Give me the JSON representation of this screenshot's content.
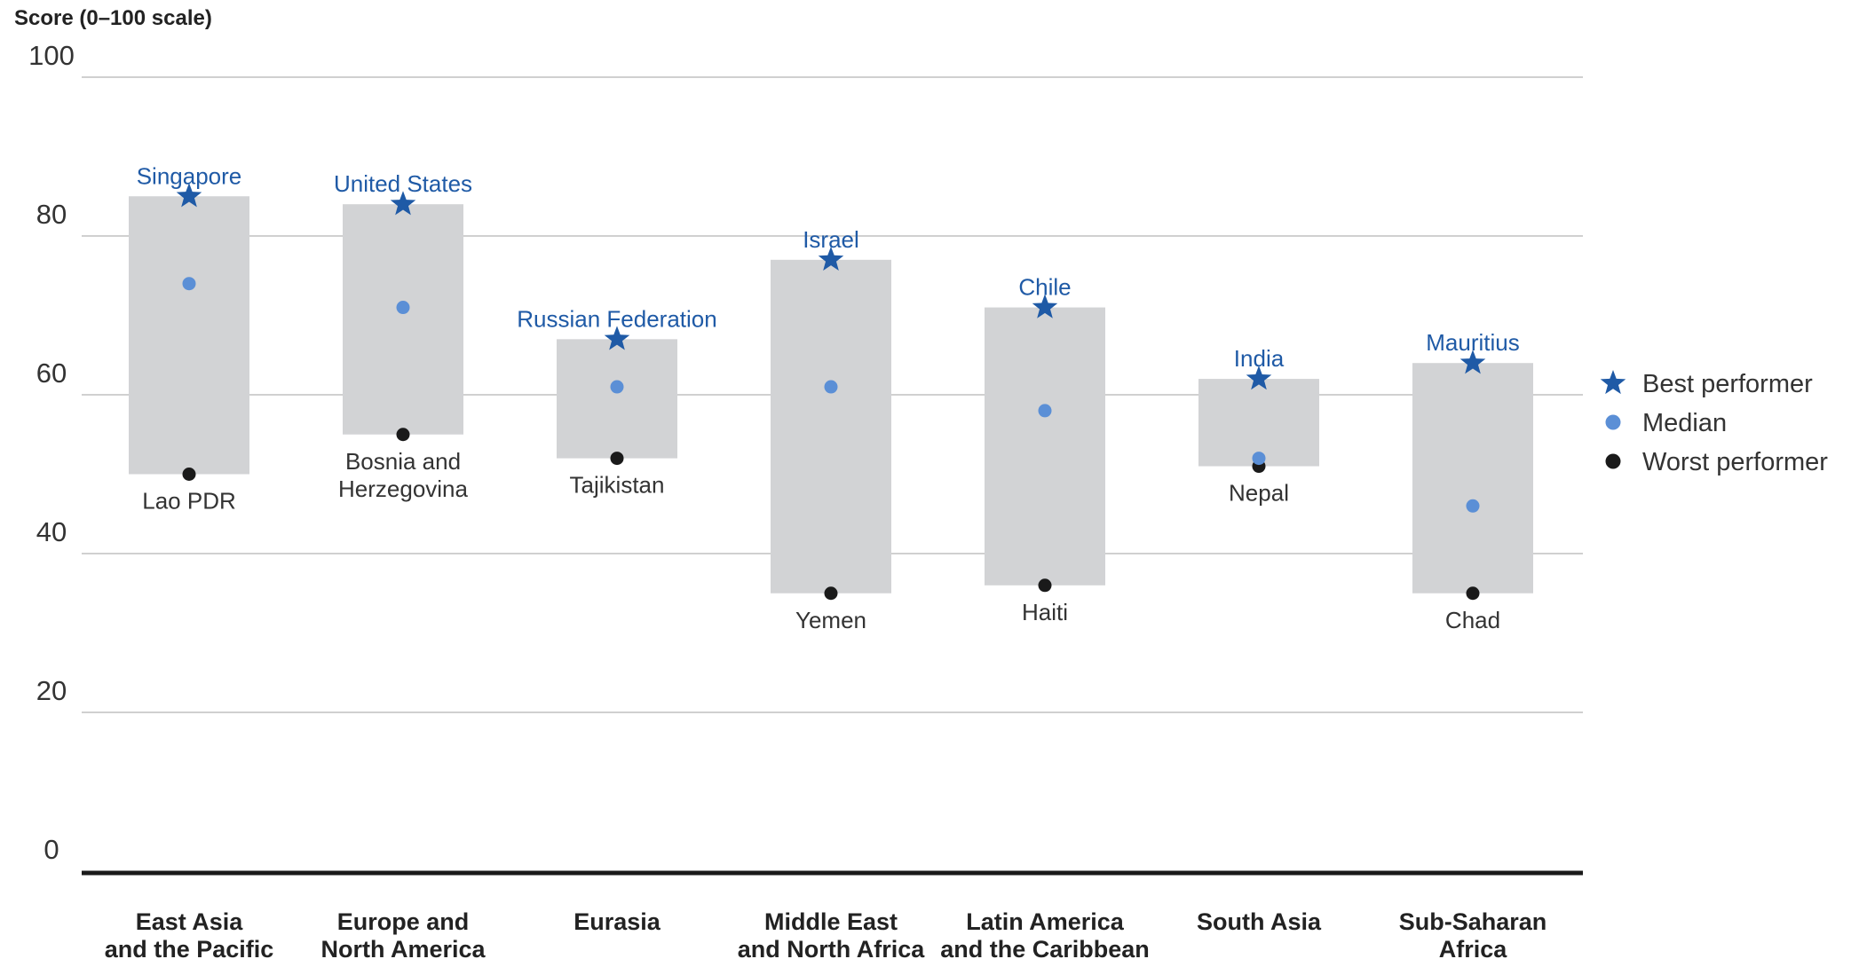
{
  "chart_data": {
    "type": "range",
    "ylabel": "Score (0–100 scale)",
    "ylim": [
      0,
      100
    ],
    "y_ticks": [
      0,
      20,
      40,
      60,
      80,
      100
    ],
    "grid": true,
    "legend_position": "right",
    "colors": {
      "range_bar": "#d2d3d5",
      "best": "#1f5aa6",
      "median": "#5b8fd6",
      "worst": "#1a1a1a",
      "grid": "#d0d0d0",
      "axis": "#1a1a1a"
    },
    "legend": [
      {
        "name": "Best performer",
        "marker": "star-icon"
      },
      {
        "name": "Median",
        "marker": "circle-icon"
      },
      {
        "name": "Worst performer",
        "marker": "circle-icon"
      }
    ],
    "categories": [
      [
        "East Asia",
        "and the Pacific"
      ],
      [
        "Europe and",
        "North America"
      ],
      [
        "Eurasia"
      ],
      [
        "Middle East",
        "and North Africa"
      ],
      [
        "Latin America",
        "and the Caribbean"
      ],
      [
        "South Asia"
      ],
      [
        "Sub-Saharan",
        "Africa"
      ]
    ],
    "series": [
      {
        "name": "Best performer",
        "values": [
          85,
          84,
          67,
          77,
          71,
          62,
          64
        ],
        "labels": [
          [
            "Singapore"
          ],
          [
            "United States"
          ],
          [
            "Russian Federation"
          ],
          [
            "Israel"
          ],
          [
            "Chile"
          ],
          [
            "India"
          ],
          [
            "Mauritius"
          ]
        ]
      },
      {
        "name": "Median",
        "values": [
          74,
          71,
          61,
          61,
          58,
          52,
          46
        ]
      },
      {
        "name": "Worst performer",
        "values": [
          50,
          55,
          52,
          35,
          36,
          51,
          35
        ],
        "labels": [
          [
            "Lao PDR"
          ],
          [
            "Bosnia and",
            "Herzegovina"
          ],
          [
            "Tajikistan"
          ],
          [
            "Yemen"
          ],
          [
            "Haiti"
          ],
          [
            "Nepal"
          ],
          [
            "Chad"
          ]
        ]
      }
    ]
  }
}
